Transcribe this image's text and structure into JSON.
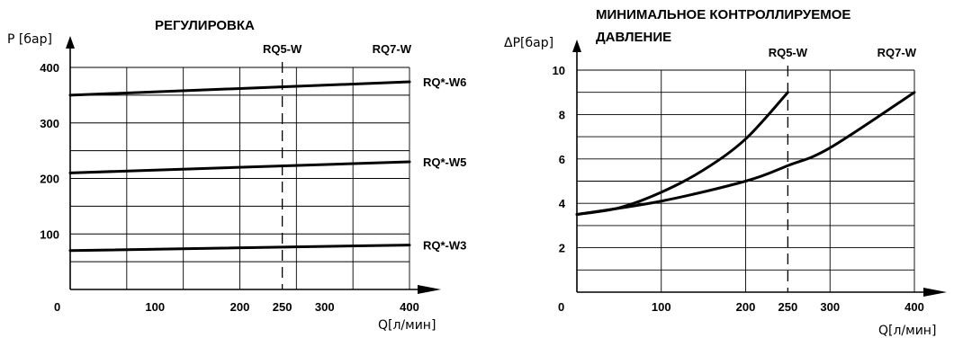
{
  "chart_data": [
    {
      "type": "line",
      "title": "РЕГУЛИРОВКА",
      "ylabel": "P [бар]",
      "xlabel": "Q[л/мин]",
      "xlim": [
        0,
        400
      ],
      "ylim": [
        0,
        400
      ],
      "x_ticks": [
        "100",
        "200",
        "250",
        "300",
        "400"
      ],
      "x_tick_values": [
        100,
        200,
        250,
        300,
        400
      ],
      "x_origin_label": "0",
      "y_ticks": [
        "100",
        "200",
        "300",
        "400"
      ],
      "y_tick_values": [
        100,
        200,
        300,
        400
      ],
      "grid": true,
      "markers": [
        {
          "label": "RQ5-W",
          "x": 250,
          "dashed": true
        },
        {
          "label": "RQ7-W",
          "x": 400,
          "dashed": false
        }
      ],
      "series": [
        {
          "name": "RQ*-W6",
          "x": [
            0,
            400
          ],
          "y": [
            350,
            374
          ]
        },
        {
          "name": "RQ*-W5",
          "x": [
            0,
            400
          ],
          "y": [
            210,
            230
          ]
        },
        {
          "name": "RQ*-W3",
          "x": [
            0,
            400
          ],
          "y": [
            70,
            80
          ]
        }
      ]
    },
    {
      "type": "line",
      "title": "МИНИМАЛЬНОЕ КОНТРОЛЛИРУЕМОЕ ДАВЛЕНИЕ",
      "title_lines": [
        "МИНИМАЛЬНОЕ КОНТРОЛЛИРУЕМОЕ",
        "ДАВЛЕНИЕ"
      ],
      "ylabel": "ΔP[бар]",
      "xlabel": "Q[л/мин]",
      "xlim": [
        0,
        400
      ],
      "ylim": [
        0,
        10
      ],
      "x_ticks": [
        "100",
        "200",
        "250",
        "300",
        "400"
      ],
      "x_tick_values": [
        100,
        200,
        250,
        300,
        400
      ],
      "x_origin_label": "0",
      "y_ticks": [
        "2",
        "4",
        "6",
        "8",
        "10"
      ],
      "y_tick_values": [
        2,
        4,
        6,
        8,
        10
      ],
      "grid": true,
      "markers": [
        {
          "label": "RQ5-W",
          "x": 250,
          "dashed": true
        },
        {
          "label": "RQ7-W",
          "x": 400,
          "dashed": false
        }
      ],
      "series": [
        {
          "name": "RQ5-W",
          "x": [
            0,
            50,
            100,
            150,
            200,
            250
          ],
          "y": [
            3.5,
            3.8,
            4.5,
            5.5,
            6.9,
            9.0
          ]
        },
        {
          "name": "RQ7-W",
          "x": [
            0,
            100,
            200,
            250,
            300,
            400
          ],
          "y": [
            3.5,
            4.1,
            5.0,
            5.7,
            6.5,
            9.0
          ]
        }
      ]
    }
  ]
}
